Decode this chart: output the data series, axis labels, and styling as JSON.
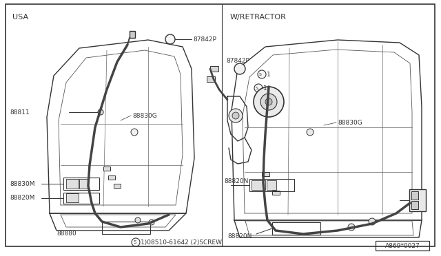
{
  "background_color": "#ffffff",
  "line_color": "#333333",
  "text_color": "#333333",
  "fig_width": 6.4,
  "fig_height": 3.72,
  "dpi": 100,
  "left_label": "USA",
  "right_label": "W/RETRACTOR",
  "bottom_right_label": "A869*0027",
  "parts": {
    "87842P_left": "87842P",
    "88811": "88811",
    "88830G_left": "88830G",
    "88830M": "88830M",
    "88820M": "88820M",
    "88880": "88880",
    "screw_note": "1)08510-61642 (2)SCREW",
    "87842P_mid": "87842P",
    "88830G_right": "88830G",
    "88820N_top": "88820N",
    "88820N_bot": "88820N"
  }
}
